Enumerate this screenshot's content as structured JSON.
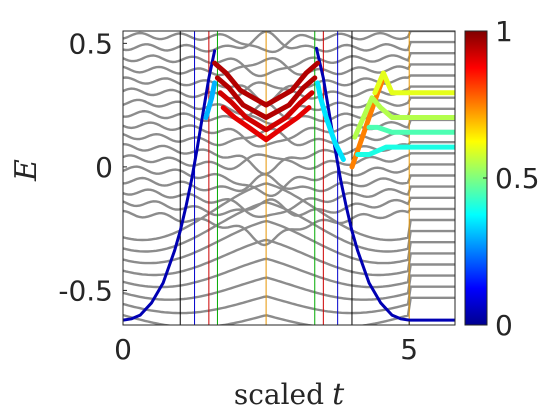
{
  "chart_data": {
    "type": "line",
    "title": "",
    "xlabel": "scaled",
    "xlabel_var": "t",
    "ylabel": "E",
    "xlim": [
      0,
      5.8
    ],
    "ylim": [
      -0.64,
      0.55
    ],
    "xticks": [
      0,
      5
    ],
    "xtick_labels": [
      "0",
      "5"
    ],
    "yticks": [
      -0.5,
      0,
      0.5
    ],
    "ytick_labels": [
      "-0.5",
      "0",
      "0.5"
    ],
    "grid": false,
    "legend": "none",
    "colorbar": {
      "colormap": "jet",
      "range": [
        0,
        1
      ],
      "tick_values": [
        0,
        0.5,
        1
      ],
      "tick_labels": [
        "0",
        "0.5",
        "1"
      ]
    },
    "vertical_lines": [
      {
        "x": 1.0,
        "color": "#000000"
      },
      {
        "x": 1.25,
        "color": "#0000cc"
      },
      {
        "x": 1.5,
        "color": "#cc0000"
      },
      {
        "x": 1.65,
        "color": "#00aa00"
      },
      {
        "x": 2.5,
        "color": "#e69500"
      },
      {
        "x": 3.35,
        "color": "#00aa00"
      },
      {
        "x": 3.5,
        "color": "#cc0000"
      },
      {
        "x": 3.75,
        "color": "#0000cc"
      },
      {
        "x": 4.0,
        "color": "#000000"
      },
      {
        "x": 5.0,
        "color": "#e69500"
      }
    ],
    "series": [
      {
        "style": "ground-state",
        "colorValue": 0.05,
        "points": [
          [
            0,
            -0.62
          ],
          [
            0.15,
            -0.615
          ],
          [
            0.3,
            -0.6
          ],
          [
            0.5,
            -0.55
          ],
          [
            0.7,
            -0.47
          ],
          [
            0.9,
            -0.34
          ],
          [
            1.0,
            -0.26
          ],
          [
            1.1,
            -0.16
          ],
          [
            1.2,
            -0.05
          ],
          [
            1.3,
            0.08
          ],
          [
            1.4,
            0.22
          ],
          [
            1.5,
            0.36
          ],
          [
            1.6,
            0.47
          ]
        ]
      },
      {
        "style": "ground-state",
        "colorValue": 0.05,
        "points": [
          [
            3.38,
            0.48
          ],
          [
            3.5,
            0.36
          ],
          [
            3.6,
            0.22
          ],
          [
            3.7,
            0.08
          ],
          [
            3.8,
            -0.05
          ],
          [
            3.9,
            -0.16
          ],
          [
            4.0,
            -0.26
          ],
          [
            4.1,
            -0.34
          ],
          [
            4.3,
            -0.47
          ],
          [
            4.5,
            -0.55
          ],
          [
            4.7,
            -0.6
          ],
          [
            4.85,
            -0.615
          ],
          [
            5.0,
            -0.62
          ],
          [
            5.8,
            -0.62
          ]
        ]
      },
      {
        "style": "colored",
        "colorValue": 0.95,
        "points": [
          [
            1.6,
            0.42
          ],
          [
            1.8,
            0.38
          ],
          [
            2.05,
            0.31
          ],
          [
            2.5,
            0.25
          ],
          [
            2.95,
            0.31
          ],
          [
            3.2,
            0.38
          ],
          [
            3.4,
            0.42
          ]
        ]
      },
      {
        "style": "colored",
        "colorValue": 0.95,
        "points": [
          [
            1.65,
            0.36
          ],
          [
            1.85,
            0.32
          ],
          [
            2.1,
            0.25
          ],
          [
            2.5,
            0.2
          ],
          [
            2.9,
            0.25
          ],
          [
            3.15,
            0.32
          ],
          [
            3.35,
            0.36
          ]
        ]
      },
      {
        "style": "colored",
        "colorValue": 0.92,
        "points": [
          [
            1.7,
            0.3
          ],
          [
            1.9,
            0.26
          ],
          [
            2.15,
            0.2
          ],
          [
            2.5,
            0.15
          ],
          [
            2.85,
            0.2
          ],
          [
            3.1,
            0.26
          ],
          [
            3.3,
            0.3
          ]
        ]
      },
      {
        "style": "colored",
        "colorValue": 0.9,
        "points": [
          [
            1.75,
            0.24
          ],
          [
            1.95,
            0.2
          ],
          [
            2.2,
            0.16
          ],
          [
            2.5,
            0.11
          ],
          [
            2.8,
            0.16
          ],
          [
            3.05,
            0.2
          ],
          [
            3.25,
            0.24
          ]
        ]
      },
      {
        "style": "colored",
        "colorValue": 0.3,
        "points": [
          [
            1.45,
            0.2
          ],
          [
            1.55,
            0.28
          ],
          [
            1.6,
            0.34
          ]
        ]
      },
      {
        "style": "colored",
        "colorValue": 0.35,
        "points": [
          [
            3.4,
            0.34
          ],
          [
            3.45,
            0.28
          ],
          [
            3.55,
            0.2
          ],
          [
            3.7,
            0.1
          ],
          [
            3.85,
            0.03
          ]
        ]
      },
      {
        "style": "colored",
        "colorValue": 0.75,
        "points": [
          [
            4.0,
            0.0
          ],
          [
            4.15,
            0.1
          ],
          [
            4.3,
            0.2
          ],
          [
            4.45,
            0.3
          ],
          [
            4.55,
            0.36
          ]
        ]
      },
      {
        "style": "colored",
        "colorValue": 0.55,
        "points": [
          [
            4.05,
            0.12
          ],
          [
            4.2,
            0.2
          ],
          [
            4.35,
            0.28
          ],
          [
            4.5,
            0.24
          ],
          [
            4.7,
            0.2
          ],
          [
            5.0,
            0.2
          ],
          [
            5.8,
            0.2
          ]
        ]
      },
      {
        "style": "colored",
        "colorValue": 0.6,
        "points": [
          [
            4.4,
            0.3
          ],
          [
            4.55,
            0.38
          ],
          [
            4.7,
            0.3
          ],
          [
            5.0,
            0.3
          ],
          [
            5.8,
            0.3
          ]
        ]
      },
      {
        "style": "colored",
        "colorValue": 0.45,
        "points": [
          [
            4.3,
            0.16
          ],
          [
            4.45,
            0.16
          ],
          [
            4.7,
            0.14
          ],
          [
            5.0,
            0.14
          ],
          [
            5.8,
            0.14
          ]
        ]
      },
      {
        "style": "colored",
        "colorValue": 0.4,
        "points": [
          [
            4.1,
            0.05
          ],
          [
            4.3,
            0.05
          ],
          [
            4.6,
            0.08
          ],
          [
            5.0,
            0.08
          ],
          [
            5.8,
            0.08
          ]
        ]
      }
    ]
  }
}
